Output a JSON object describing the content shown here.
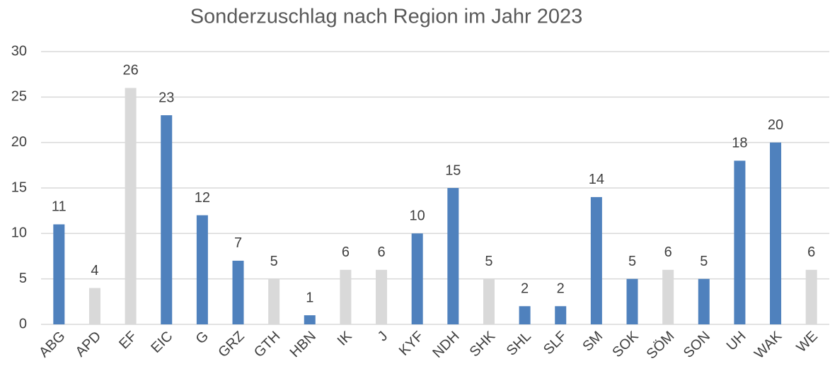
{
  "chart_data": {
    "type": "bar",
    "title": "Sonderzuschlag nach Region im Jahr 2023",
    "categories": [
      "ABG",
      "APD",
      "EF",
      "EIC",
      "G",
      "GRZ",
      "GTH",
      "HBN",
      "IK",
      "J",
      "KYF",
      "NDH",
      "SHK",
      "SHL",
      "SLF",
      "SM",
      "SOK",
      "SÖM",
      "SON",
      "UH",
      "WAK",
      "WE"
    ],
    "values": [
      11,
      4,
      26,
      23,
      12,
      7,
      5,
      1,
      6,
      6,
      10,
      15,
      5,
      2,
      2,
      14,
      5,
      6,
      5,
      18,
      20,
      6
    ],
    "colors": [
      "#4f81bd",
      "#d9d9d9",
      "#d9d9d9",
      "#4f81bd",
      "#4f81bd",
      "#4f81bd",
      "#d9d9d9",
      "#4f81bd",
      "#d9d9d9",
      "#d9d9d9",
      "#4f81bd",
      "#4f81bd",
      "#d9d9d9",
      "#4f81bd",
      "#4f81bd",
      "#4f81bd",
      "#4f81bd",
      "#d9d9d9",
      "#4f81bd",
      "#4f81bd",
      "#4f81bd",
      "#d9d9d9"
    ],
    "ylim": [
      0,
      30
    ],
    "yticks": [
      0,
      5,
      10,
      15,
      20,
      25,
      30
    ],
    "grid": true
  }
}
